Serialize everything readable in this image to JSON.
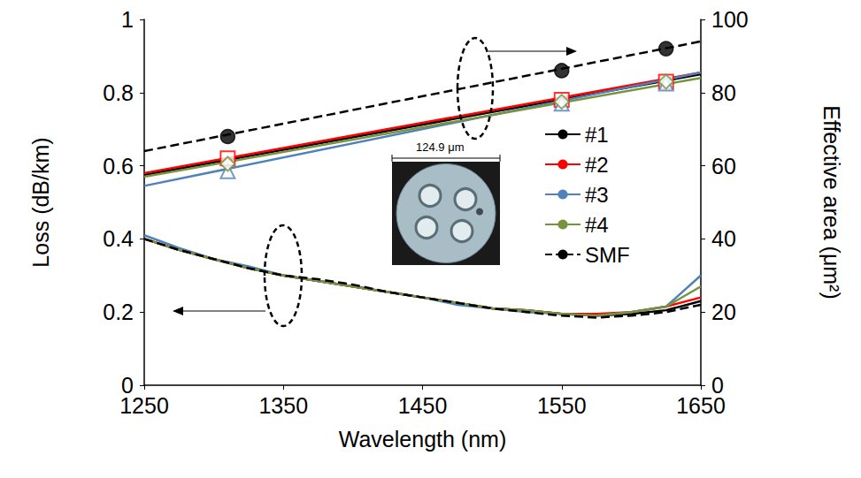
{
  "chart_data": {
    "type": "line",
    "x_label": "Wavelength (nm)",
    "y_label": "Loss (dB/km)",
    "y2_label": "Effective area (μm²)",
    "annotations": [
      "124.9 μm"
    ],
    "x": [
      1250,
      1275,
      1300,
      1325,
      1350,
      1375,
      1400,
      1425,
      1450,
      1475,
      1500,
      1525,
      1550,
      1575,
      1600,
      1625,
      1650
    ],
    "xlim": [
      1250,
      1650
    ],
    "xticks": [
      1250,
      1350,
      1450,
      1550,
      1650
    ],
    "ylim": [
      0,
      1
    ],
    "yticks": [
      0,
      0.2,
      0.4,
      0.6,
      0.8,
      1
    ],
    "y2lim": [
      0,
      100
    ],
    "y2ticks": [
      0,
      20,
      40,
      60,
      80,
      100
    ],
    "grid": false,
    "legend": "right",
    "series": [
      {
        "name": "#1",
        "color": "#000000",
        "type": "line",
        "line_style": "solid",
        "values": [
          0.4,
          0.37,
          0.345,
          0.32,
          0.3,
          0.285,
          0.27,
          0.255,
          0.24,
          0.225,
          0.21,
          0.205,
          0.195,
          0.19,
          0.195,
          0.205,
          0.23
        ]
      },
      {
        "name": "#2",
        "color": "#ff0000",
        "type": "line",
        "line_style": "solid",
        "values": [
          0.4,
          0.37,
          0.345,
          0.32,
          0.3,
          0.285,
          0.27,
          0.255,
          0.24,
          0.225,
          0.21,
          0.205,
          0.195,
          0.195,
          0.2,
          0.215,
          0.24
        ]
      },
      {
        "name": "#3",
        "color": "#4f81bd",
        "type": "line",
        "line_style": "solid",
        "values": [
          0.41,
          0.375,
          0.345,
          0.325,
          0.3,
          0.285,
          0.27,
          0.255,
          0.24,
          0.22,
          0.21,
          0.2,
          0.195,
          0.19,
          0.2,
          0.215,
          0.3
        ]
      },
      {
        "name": "#4",
        "color": "#77933c",
        "type": "line",
        "line_style": "solid",
        "values": [
          0.4,
          0.37,
          0.345,
          0.32,
          0.3,
          0.285,
          0.27,
          0.255,
          0.24,
          0.225,
          0.21,
          0.205,
          0.195,
          0.19,
          0.2,
          0.215,
          0.27
        ]
      },
      {
        "name": "SMF",
        "color": "#000000",
        "type": "line",
        "line_style": "dashed",
        "values": [
          0.4,
          0.37,
          0.345,
          0.32,
          0.3,
          0.29,
          0.275,
          0.255,
          0.24,
          0.225,
          0.21,
          0.2,
          0.19,
          0.185,
          0.19,
          0.2,
          0.22
        ]
      },
      {
        "name": "#1",
        "color": "#000000",
        "type": "line",
        "line_style": "solid",
        "axis": "y2",
        "x": [
          1250,
          1650
        ],
        "values": [
          57.5,
          85
        ]
      },
      {
        "name": "#2",
        "color": "#ff0000",
        "type": "line",
        "line_style": "solid",
        "axis": "y2",
        "x": [
          1250,
          1650
        ],
        "values": [
          58,
          85.5
        ]
      },
      {
        "name": "#3",
        "color": "#4f81bd",
        "type": "line",
        "line_style": "solid",
        "axis": "y2",
        "x": [
          1250,
          1650
        ],
        "values": [
          54.5,
          85.5
        ]
      },
      {
        "name": "#4",
        "color": "#77933c",
        "type": "line",
        "line_style": "solid",
        "axis": "y2",
        "x": [
          1250,
          1650
        ],
        "values": [
          57,
          84
        ]
      },
      {
        "name": "SMF",
        "color": "#000000",
        "type": "line",
        "line_style": "dashed",
        "axis": "y2",
        "x": [
          1250,
          1650
        ],
        "values": [
          64,
          94
        ]
      },
      {
        "name": "SMF",
        "color": "#000000",
        "type": "scatter",
        "marker": "circle",
        "axis": "y2",
        "x": [
          1310,
          1550,
          1625
        ],
        "values": [
          68,
          86,
          92
        ]
      },
      {
        "name": "#2",
        "color": "#ff0000",
        "type": "scatter",
        "marker": "open square",
        "axis": "y2",
        "x": [
          1310,
          1550,
          1625
        ],
        "values": [
          62,
          78,
          83
        ]
      },
      {
        "name": "#3",
        "color": "#4f81bd",
        "type": "scatter",
        "marker": "open triangle",
        "axis": "y2",
        "x": [
          1310,
          1550,
          1625
        ],
        "values": [
          58.5,
          77,
          82.5
        ]
      },
      {
        "name": "#4",
        "color": "#77933c",
        "type": "scatter",
        "marker": "open diamond",
        "axis": "y2",
        "x": [
          1310,
          1550,
          1625
        ],
        "values": [
          60.5,
          77.5,
          83
        ]
      }
    ]
  }
}
